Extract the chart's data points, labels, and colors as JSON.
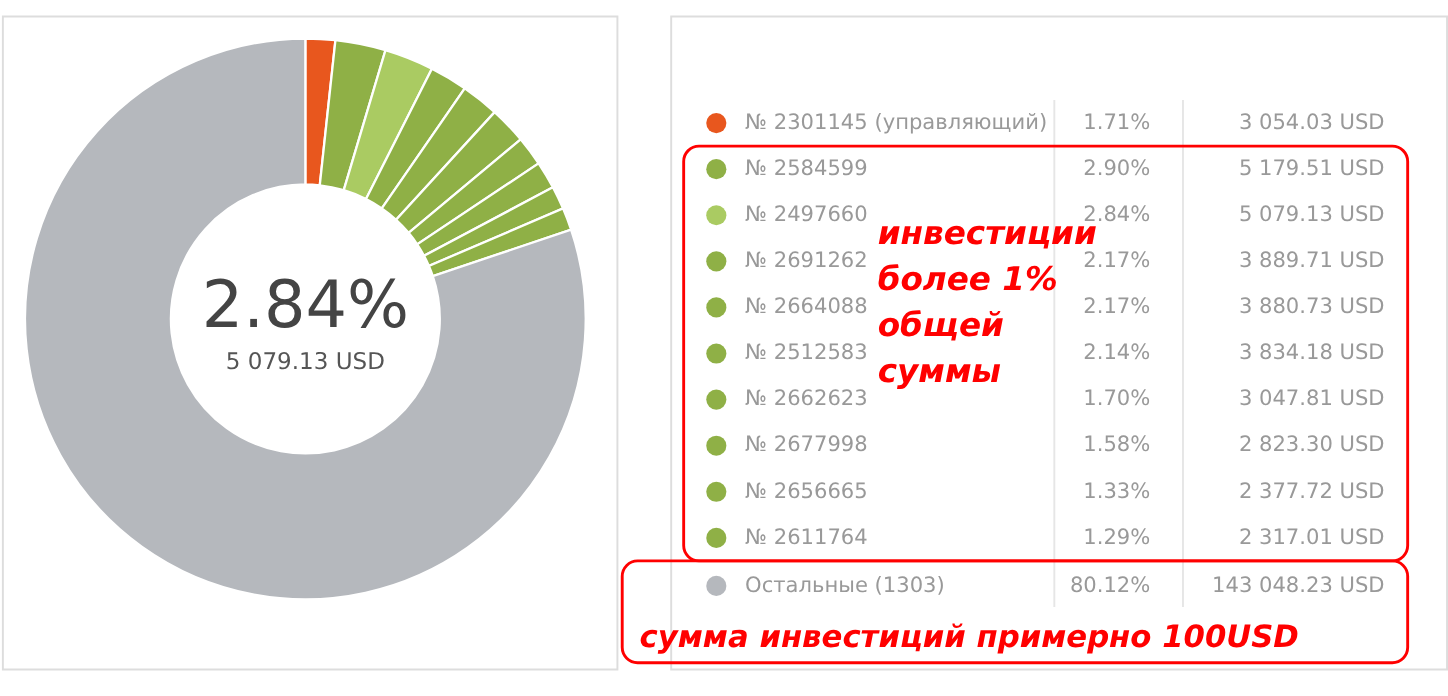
{
  "chart_data": {
    "type": "donut",
    "categories": [
      "№ 2301145 (управляющий)",
      "№ 2584599",
      "№ 2497660",
      "№ 2691262",
      "№ 2664088",
      "№ 2512583",
      "№ 2662623",
      "№ 2677998",
      "№ 2656665",
      "№ 2611764",
      "Остальные (1303)"
    ],
    "values": [
      1.71,
      2.9,
      2.84,
      2.17,
      2.17,
      2.14,
      1.7,
      1.58,
      1.33,
      1.29,
      80.12
    ],
    "value_labels": [
      "1.71%",
      "2.90%",
      "2.84%",
      "2.17%",
      "2.17%",
      "2.14%",
      "1.70%",
      "1.58%",
      "1.33%",
      "1.29%",
      "80.12%"
    ],
    "colors": [
      "#e8571e",
      "#8fb046",
      "#aacb62",
      "#8fb046",
      "#8fb046",
      "#8fb046",
      "#8fb046",
      "#8fb046",
      "#8fb046",
      "#8fb046",
      "#b5b8bd"
    ],
    "legend": "right",
    "annotations": [
      "2.84%",
      "5 079.13 USD",
      "инвестиции\nболее 1%\nобщей\nсуммы",
      "сумма инвестиций примерно 100USD",
      {
        "text": "3 054.03 USD",
        "x": "№ 2301145 (управляющий)"
      },
      {
        "text": "5 179.51 USD",
        "x": "№ 2584599"
      },
      {
        "text": "5 079.13 USD",
        "x": "№ 2497660"
      },
      {
        "text": "3 889.71 USD",
        "x": "№ 2691262"
      },
      {
        "text": "3 880.73 USD",
        "x": "№ 2664088"
      },
      {
        "text": "3 834.18 USD",
        "x": "№ 2512583"
      },
      {
        "text": "3 047.81 USD",
        "x": "№ 2662623"
      },
      {
        "text": "2 823.30 USD",
        "x": "№ 2677998"
      },
      {
        "text": "2 377.72 USD",
        "x": "№ 2656665"
      },
      {
        "text": "2 317.01 USD",
        "x": "№ 2611764"
      },
      {
        "text": "143 048.23 USD",
        "x": "Остальные (1303)"
      }
    ]
  }
}
